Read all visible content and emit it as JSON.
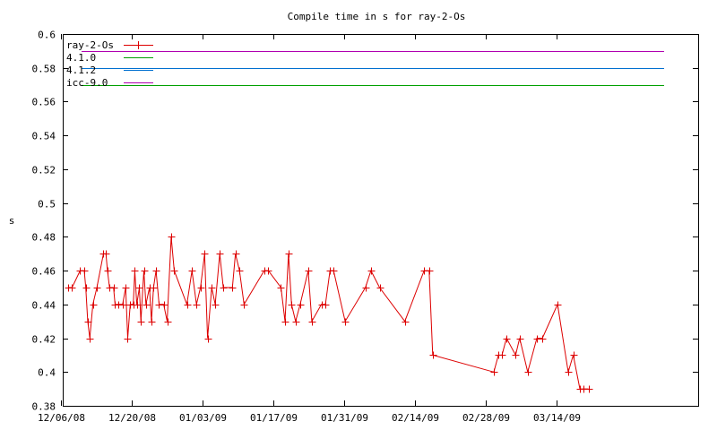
{
  "chart_data": {
    "type": "line",
    "title": "Compile time in s for ray-2-Os",
    "xlabel": "",
    "ylabel": "s",
    "ylim": [
      0.38,
      0.6
    ],
    "yticks": [
      "0.38",
      "0.4",
      "0.42",
      "0.44",
      "0.46",
      "0.48",
      "0.5",
      "0.52",
      "0.54",
      "0.56",
      "0.58",
      "0.6"
    ],
    "xlim_days": [
      0,
      98
    ],
    "xticks": [
      {
        "day": 0,
        "label": "12/06/08"
      },
      {
        "day": 14,
        "label": "12/20/08"
      },
      {
        "day": 28,
        "label": "01/03/09"
      },
      {
        "day": 42,
        "label": "01/17/09"
      },
      {
        "day": 56,
        "label": "01/31/09"
      },
      {
        "day": 70,
        "label": "02/14/09"
      },
      {
        "day": 84,
        "label": "02/28/09"
      },
      {
        "day": 98,
        "label": "03/14/09"
      }
    ],
    "legend_position": "top-left",
    "series": [
      {
        "name": "ray-2-Os",
        "color": "#dd0000",
        "marker": "plus",
        "points": [
          [
            1.4,
            0.45
          ],
          [
            2.2,
            0.45
          ],
          [
            3.8,
            0.46
          ],
          [
            4.6,
            0.46
          ],
          [
            4.9,
            0.45
          ],
          [
            5.3,
            0.43
          ],
          [
            5.7,
            0.42
          ],
          [
            6.3,
            0.44
          ],
          [
            7.1,
            0.45
          ],
          [
            8.4,
            0.47
          ],
          [
            8.9,
            0.47
          ],
          [
            9.2,
            0.46
          ],
          [
            9.6,
            0.45
          ],
          [
            10.4,
            0.45
          ],
          [
            10.7,
            0.44
          ],
          [
            11.4,
            0.44
          ],
          [
            12.2,
            0.44
          ],
          [
            12.8,
            0.45
          ],
          [
            13.2,
            0.42
          ],
          [
            13.7,
            0.44
          ],
          [
            14.3,
            0.44
          ],
          [
            14.6,
            0.46
          ],
          [
            15.0,
            0.44
          ],
          [
            15.5,
            0.45
          ],
          [
            15.8,
            0.43
          ],
          [
            16.4,
            0.46
          ],
          [
            16.8,
            0.44
          ],
          [
            17.5,
            0.45
          ],
          [
            17.9,
            0.43
          ],
          [
            18.3,
            0.45
          ],
          [
            18.8,
            0.46
          ],
          [
            19.4,
            0.44
          ],
          [
            20.3,
            0.44
          ],
          [
            21.0,
            0.43
          ],
          [
            21.8,
            0.48
          ],
          [
            22.4,
            0.46
          ],
          [
            24.9,
            0.44
          ],
          [
            25.9,
            0.46
          ],
          [
            26.8,
            0.44
          ],
          [
            27.6,
            0.45
          ],
          [
            28.4,
            0.47
          ],
          [
            29.0,
            0.42
          ],
          [
            29.8,
            0.45
          ],
          [
            30.5,
            0.44
          ],
          [
            31.4,
            0.47
          ],
          [
            32.1,
            0.45
          ],
          [
            33.9,
            0.45
          ],
          [
            34.5,
            0.47
          ],
          [
            35.3,
            0.46
          ],
          [
            36.2,
            0.44
          ],
          [
            40.2,
            0.46
          ],
          [
            41.0,
            0.46
          ],
          [
            43.5,
            0.45
          ],
          [
            44.3,
            0.43
          ],
          [
            45.0,
            0.47
          ],
          [
            45.6,
            0.44
          ],
          [
            46.4,
            0.43
          ],
          [
            47.3,
            0.44
          ],
          [
            48.9,
            0.46
          ],
          [
            49.6,
            0.43
          ],
          [
            51.5,
            0.44
          ],
          [
            52.3,
            0.44
          ],
          [
            53.2,
            0.46
          ],
          [
            53.9,
            0.46
          ],
          [
            56.2,
            0.43
          ],
          [
            60.2,
            0.45
          ],
          [
            61.3,
            0.46
          ],
          [
            63.0,
            0.45
          ],
          [
            68.0,
            0.43
          ],
          [
            71.8,
            0.46
          ],
          [
            72.8,
            0.46
          ],
          [
            73.5,
            0.41
          ],
          [
            85.6,
            0.4
          ],
          [
            86.5,
            0.41
          ],
          [
            87.2,
            0.41
          ],
          [
            88.1,
            0.42
          ],
          [
            89.9,
            0.41
          ],
          [
            90.7,
            0.42
          ],
          [
            92.3,
            0.4
          ],
          [
            94.1,
            0.42
          ],
          [
            95.2,
            0.42
          ],
          [
            98.2,
            0.44
          ],
          [
            100.3,
            0.4
          ],
          [
            101.3,
            0.41
          ],
          [
            102.6,
            0.39
          ],
          [
            103.4,
            0.39
          ],
          [
            104.3,
            0.39
          ]
        ]
      },
      {
        "name": "4.1.0",
        "color": "#00a000",
        "constant": 0.57
      },
      {
        "name": "4.1.2",
        "color": "#0070d0",
        "constant": 0.58
      },
      {
        "name": "icc-9.0",
        "color": "#b000b0",
        "constant": 0.59
      }
    ]
  }
}
